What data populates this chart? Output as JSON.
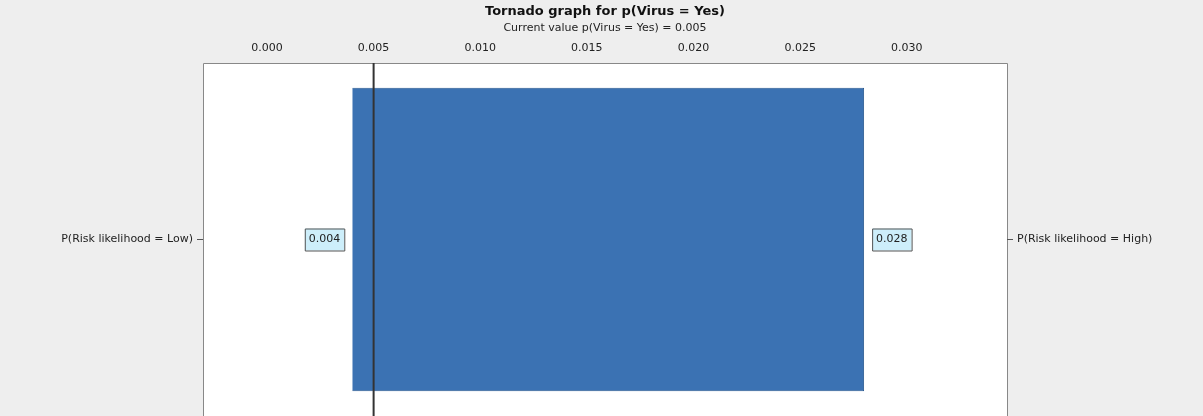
{
  "chart_data": {
    "type": "bar",
    "orientation": "horizontal",
    "title": "Tornado graph for p(Virus = Yes)",
    "subtitle": "Current value p(Virus = Yes) = 0.005",
    "categories": [
      null
    ],
    "base": [
      0.004
    ],
    "values": [
      0.024
    ],
    "color": "#3b72b3",
    "xlim": [
      -0.003,
      0.0347
    ],
    "xticks": [
      {
        "value": 0,
        "label": "0.000"
      },
      {
        "value": 0.005,
        "label": "0.005"
      },
      {
        "value": 0.01,
        "label": "0.010"
      },
      {
        "value": 0.015,
        "label": "0.015"
      },
      {
        "value": 0.02,
        "label": "0.020"
      },
      {
        "value": 0.025,
        "label": "0.025"
      },
      {
        "value": 0.03,
        "label": "0.030"
      }
    ],
    "ref_lines": [
      {
        "axis": "x",
        "value": 0.005,
        "color": "#333333"
      }
    ],
    "annotations": [
      "P(Risk likelihood = Low)",
      "P(Risk likelihood = High)",
      {
        "text": "0.004",
        "x": 0.004
      },
      {
        "text": "0.028",
        "x": 0.028
      }
    ],
    "grid": false,
    "legend": false
  }
}
